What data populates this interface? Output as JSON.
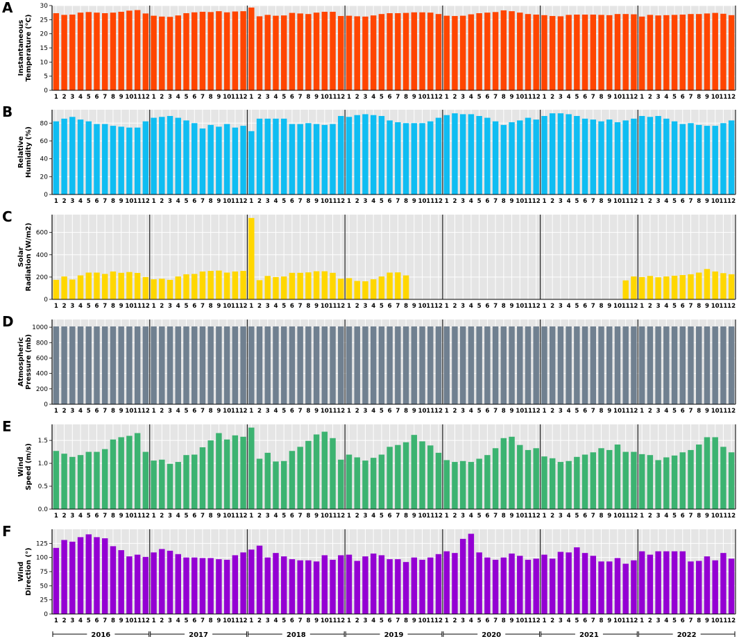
{
  "chart_data": [
    {
      "type": "bar",
      "panel": "A",
      "ylabel": [
        "Instantaneous",
        "Temperature (°C)"
      ],
      "ylim": [
        0,
        30
      ],
      "yticks": [
        0,
        5,
        10,
        15,
        20,
        25,
        30
      ],
      "color": "#ff4500",
      "grid": true,
      "years": [
        "2016",
        "2017",
        "2018",
        "2019",
        "2020",
        "2021",
        "2022"
      ],
      "months": [
        "1",
        "2",
        "3",
        "4",
        "5",
        "6",
        "7",
        "8",
        "9",
        "10",
        "11",
        "12"
      ],
      "values": [
        27.3,
        26.7,
        26.8,
        27.5,
        27.7,
        27.5,
        27.3,
        27.5,
        27.8,
        28.2,
        28.4,
        27.2,
        26.4,
        26.1,
        26.0,
        26.5,
        27.3,
        27.6,
        27.8,
        27.7,
        28.0,
        27.6,
        27.9,
        28.0,
        29.3,
        26.2,
        26.7,
        26.4,
        26.5,
        27.4,
        27.2,
        27.0,
        27.5,
        27.8,
        27.8,
        26.3,
        26.4,
        26.2,
        26.1,
        26.5,
        27.0,
        27.3,
        27.3,
        27.4,
        27.6,
        27.6,
        27.5,
        27.0,
        26.4,
        26.3,
        26.4,
        26.9,
        27.3,
        27.5,
        27.7,
        28.3,
        28.0,
        27.5,
        27.0,
        26.8,
        26.6,
        26.3,
        26.2,
        26.7,
        26.8,
        26.8,
        26.8,
        26.7,
        26.6,
        27.0,
        27.0,
        26.9,
        26.1,
        26.7,
        26.5,
        26.6,
        26.7,
        26.8,
        27.0,
        27.0,
        27.2,
        27.4,
        27.1,
        26.6
      ]
    },
    {
      "type": "bar",
      "panel": "B",
      "ylabel": [
        "Relative",
        "Humidity (%)"
      ],
      "ylim": [
        0,
        95
      ],
      "yticks": [
        0,
        20,
        40,
        60,
        80
      ],
      "color": "#0fbdf2",
      "grid": true,
      "years": [
        "2016",
        "2017",
        "2018",
        "2019",
        "2020",
        "2021",
        "2022"
      ],
      "months": [
        "1",
        "2",
        "3",
        "4",
        "5",
        "6",
        "7",
        "8",
        "9",
        "10",
        "11",
        "12"
      ],
      "values": [
        82,
        85,
        87,
        84,
        82,
        79,
        79,
        77,
        76,
        75,
        75,
        82,
        86,
        87,
        88,
        86,
        83,
        80,
        74,
        78,
        76,
        79,
        75,
        77,
        71,
        85,
        85,
        85,
        85,
        79,
        79,
        80,
        79,
        78,
        79,
        88,
        87,
        89,
        90,
        89,
        88,
        83,
        81,
        80,
        80,
        80,
        82,
        86,
        89,
        91,
        90,
        90,
        88,
        86,
        82,
        78,
        81,
        83,
        86,
        84,
        88,
        91,
        91,
        90,
        88,
        85,
        84,
        82,
        84,
        81,
        83,
        85,
        88,
        87,
        88,
        85,
        82,
        79,
        80,
        78,
        77,
        77,
        80,
        83
      ]
    },
    {
      "type": "bar",
      "panel": "C",
      "ylabel": [
        "Solar",
        "Radiation (W/m2)"
      ],
      "ylim": [
        0,
        760
      ],
      "yticks": [
        0,
        200,
        400,
        600
      ],
      "color": "#ffd700",
      "grid": true,
      "years": [
        "2016",
        "2017",
        "2018",
        "2019",
        "2020",
        "2021",
        "2022"
      ],
      "months": [
        "1",
        "2",
        "3",
        "4",
        "5",
        "6",
        "7",
        "8",
        "9",
        "10",
        "11",
        "12"
      ],
      "values": [
        175,
        205,
        178,
        215,
        240,
        240,
        228,
        250,
        238,
        245,
        237,
        200,
        180,
        185,
        175,
        205,
        225,
        228,
        250,
        255,
        258,
        240,
        250,
        255,
        730,
        172,
        210,
        200,
        205,
        238,
        238,
        242,
        252,
        252,
        238,
        185,
        190,
        165,
        162,
        180,
        205,
        240,
        242,
        215,
        0,
        0,
        0,
        0,
        0,
        0,
        0,
        0,
        0,
        0,
        0,
        0,
        0,
        0,
        0,
        0,
        0,
        0,
        0,
        0,
        0,
        0,
        0,
        0,
        0,
        0,
        170,
        205,
        200,
        210,
        198,
        205,
        212,
        218,
        225,
        240,
        272,
        250,
        235,
        225
      ]
    },
    {
      "type": "bar",
      "panel": "D",
      "ylabel": [
        "Atmospheric",
        "Pressure (mb)"
      ],
      "ylim": [
        0,
        1100
      ],
      "yticks": [
        0,
        200,
        400,
        600,
        800,
        1000
      ],
      "color": "#708090",
      "grid": true,
      "years": [
        "2016",
        "2017",
        "2018",
        "2019",
        "2020",
        "2021",
        "2022"
      ],
      "months": [
        "1",
        "2",
        "3",
        "4",
        "5",
        "6",
        "7",
        "8",
        "9",
        "10",
        "11",
        "12"
      ],
      "values": [
        1010,
        1010,
        1010,
        1010,
        1010,
        1010,
        1010,
        1010,
        1010,
        1010,
        1010,
        1010,
        1010,
        1010,
        1010,
        1010,
        1010,
        1010,
        1010,
        1010,
        1010,
        1010,
        1010,
        1010,
        1010,
        1010,
        1010,
        1010,
        1010,
        1010,
        1010,
        1010,
        1010,
        1010,
        1010,
        1010,
        1010,
        1010,
        1010,
        1010,
        1010,
        1010,
        1010,
        1010,
        1010,
        1010,
        1010,
        1010,
        1010,
        1010,
        1010,
        1010,
        1010,
        1010,
        1010,
        1010,
        1010,
        1010,
        1010,
        1010,
        1010,
        1010,
        1010,
        1010,
        1010,
        1010,
        1010,
        1010,
        1010,
        1010,
        1010,
        1010,
        1010,
        1010,
        1010,
        1010,
        1010,
        1010,
        1010,
        1010,
        1010,
        1010,
        1010,
        1010
      ]
    },
    {
      "type": "bar",
      "panel": "E",
      "ylabel": [
        "Wind",
        "Speed (m/s)"
      ],
      "ylim": [
        0,
        1.85
      ],
      "yticks": [
        0.0,
        0.5,
        1.0,
        1.5
      ],
      "ytick_labels": [
        "0.0",
        "0.5",
        "1.0",
        "1.5"
      ],
      "color": "#3cb371",
      "grid": true,
      "years": [
        "2016",
        "2017",
        "2018",
        "2019",
        "2020",
        "2021",
        "2022"
      ],
      "months": [
        "1",
        "2",
        "3",
        "4",
        "5",
        "6",
        "7",
        "8",
        "9",
        "10",
        "11",
        "12"
      ],
      "values": [
        1.27,
        1.21,
        1.14,
        1.18,
        1.25,
        1.25,
        1.31,
        1.52,
        1.57,
        1.6,
        1.66,
        1.25,
        1.06,
        1.08,
        0.99,
        1.03,
        1.18,
        1.19,
        1.35,
        1.5,
        1.66,
        1.52,
        1.61,
        1.58,
        1.78,
        1.1,
        1.23,
        1.04,
        1.05,
        1.27,
        1.36,
        1.49,
        1.63,
        1.69,
        1.55,
        1.08,
        1.19,
        1.13,
        1.06,
        1.12,
        1.19,
        1.36,
        1.4,
        1.46,
        1.62,
        1.48,
        1.39,
        1.23,
        1.07,
        1.03,
        1.05,
        1.03,
        1.1,
        1.18,
        1.33,
        1.55,
        1.58,
        1.4,
        1.29,
        1.33,
        1.15,
        1.11,
        1.03,
        1.05,
        1.14,
        1.19,
        1.24,
        1.33,
        1.29,
        1.41,
        1.25,
        1.25,
        1.2,
        1.18,
        1.07,
        1.13,
        1.17,
        1.24,
        1.29,
        1.41,
        1.57,
        1.57,
        1.36,
        1.24
      ]
    },
    {
      "type": "bar",
      "panel": "F",
      "ylabel": [
        "Wind",
        "Direction (°)"
      ],
      "ylim": [
        0,
        150
      ],
      "yticks": [
        0,
        25,
        50,
        75,
        100,
        125
      ],
      "color": "#9400d3",
      "grid": true,
      "years": [
        "2016",
        "2017",
        "2018",
        "2019",
        "2020",
        "2021",
        "2022"
      ],
      "months": [
        "1",
        "2",
        "3",
        "4",
        "5",
        "6",
        "7",
        "8",
        "9",
        "10",
        "11",
        "12"
      ],
      "values": [
        117,
        131,
        128,
        136,
        141,
        136,
        134,
        120,
        113,
        102,
        105,
        101,
        109,
        115,
        112,
        106,
        100,
        100,
        99,
        99,
        97,
        96,
        104,
        109,
        114,
        121,
        100,
        108,
        102,
        97,
        95,
        95,
        93,
        104,
        96,
        104,
        105,
        94,
        102,
        107,
        104,
        97,
        97,
        92,
        100,
        96,
        100,
        106,
        111,
        108,
        133,
        142,
        109,
        100,
        96,
        100,
        107,
        103,
        96,
        98,
        105,
        98,
        110,
        109,
        118,
        108,
        103,
        93,
        93,
        99,
        89,
        95,
        111,
        105,
        111,
        111,
        111,
        111,
        93,
        94,
        102,
        95,
        108,
        98
      ]
    }
  ],
  "year_axis": {
    "labels": [
      "2016",
      "2017",
      "2018",
      "2019",
      "2020",
      "2021",
      "2022"
    ]
  }
}
